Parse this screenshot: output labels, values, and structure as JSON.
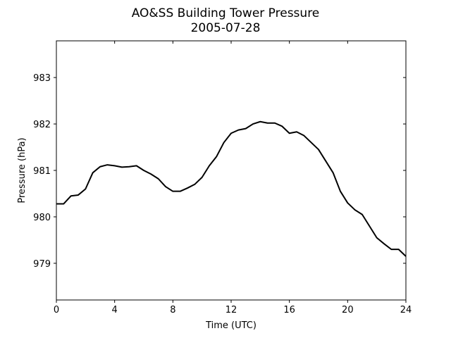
{
  "chart_data": {
    "type": "line",
    "title": "AO&SS Building Tower Pressure",
    "subtitle": "2005-07-28",
    "x_label": "Time (UTC)",
    "y_label": "Pressure (hPa)",
    "x": [
      0,
      0.5,
      1,
      1.5,
      2,
      2.5,
      3,
      3.5,
      4,
      4.5,
      5,
      5.5,
      6,
      6.5,
      7,
      7.5,
      8,
      8.5,
      9,
      9.5,
      10,
      10.5,
      11,
      11.5,
      12,
      12.5,
      13,
      13.5,
      14,
      14.5,
      15,
      15.5,
      16,
      16.5,
      17,
      17.5,
      18,
      18.5,
      19,
      19.5,
      20,
      20.5,
      21,
      21.5,
      22,
      22.5,
      23,
      23.5,
      24
    ],
    "series": [
      {
        "name": "Pressure",
        "color": "#000000",
        "values": [
          980.28,
          980.28,
          980.45,
          980.47,
          980.6,
          980.95,
          981.08,
          981.12,
          981.1,
          981.07,
          981.08,
          981.1,
          981.0,
          980.92,
          980.82,
          980.65,
          980.55,
          980.55,
          980.62,
          980.7,
          980.85,
          981.1,
          981.3,
          981.6,
          981.8,
          981.87,
          981.9,
          982.0,
          982.05,
          982.02,
          982.02,
          981.95,
          981.8,
          981.83,
          981.75,
          981.6,
          981.45,
          981.2,
          980.95,
          980.55,
          980.3,
          980.15,
          980.05,
          979.8,
          979.55,
          979.42,
          979.3,
          979.3,
          979.15
        ]
      }
    ],
    "xlim": [
      0,
      24
    ],
    "xticks": [
      0,
      4,
      8,
      12,
      16,
      20,
      24
    ],
    "ylim": [
      978.21,
      983.79
    ],
    "yticks": [
      979,
      980,
      981,
      982,
      983
    ],
    "grid": false
  }
}
